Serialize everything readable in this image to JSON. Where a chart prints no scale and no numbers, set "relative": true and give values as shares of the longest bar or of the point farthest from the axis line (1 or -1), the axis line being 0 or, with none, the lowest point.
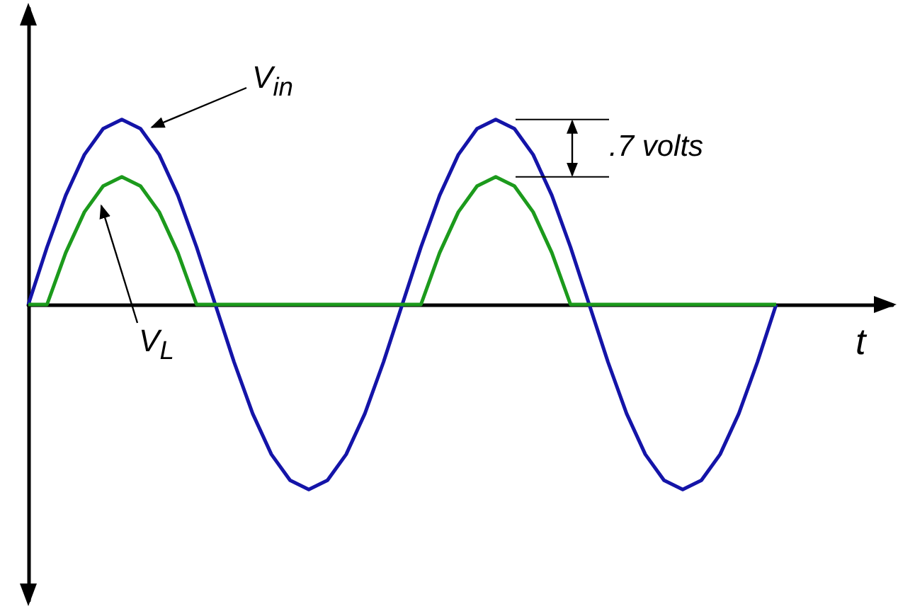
{
  "chart_data": {
    "type": "line",
    "relative": true,
    "xlabel": "t",
    "tick_labels": false,
    "categories": [
      null,
      null,
      null,
      null,
      null,
      null,
      null,
      null,
      null,
      null,
      null,
      null,
      null,
      null,
      null,
      null,
      null,
      null,
      null,
      null,
      null,
      null,
      null,
      null,
      null,
      null,
      null,
      null,
      null,
      null,
      null,
      null,
      null,
      null,
      null,
      null,
      null,
      null,
      null,
      null,
      null
    ],
    "series": [
      {
        "name": "V$_{in}$",
        "color": "#1414a8",
        "values": [
          0,
          0.31,
          0.59,
          0.81,
          0.95,
          1,
          0.95,
          0.81,
          0.59,
          0.31,
          0,
          -0.31,
          -0.59,
          -0.81,
          -0.95,
          -1,
          -0.95,
          -0.81,
          -0.59,
          -0.31,
          0,
          0.31,
          0.59,
          0.81,
          0.95,
          1,
          0.95,
          0.81,
          0.59,
          0.31,
          0,
          -0.31,
          -0.59,
          -0.81,
          -0.95,
          -1,
          -0.95,
          -0.81,
          -0.59,
          -0.31,
          0
        ]
      },
      {
        "name": "V$_{L}$",
        "color": "#1c9a1c",
        "values": [
          0,
          0,
          0.28,
          0.5,
          0.64,
          0.69,
          0.64,
          0.5,
          0.28,
          0,
          0,
          0,
          0,
          0,
          0,
          0,
          0,
          0,
          0,
          0,
          0,
          0,
          0.28,
          0.5,
          0.64,
          0.69,
          0.64,
          0.5,
          0.28,
          0,
          0,
          0,
          0,
          0,
          0,
          0,
          0,
          0,
          0,
          0,
          0
        ]
      }
    ],
    "annotations": [
      ".7 volts"
    ]
  }
}
